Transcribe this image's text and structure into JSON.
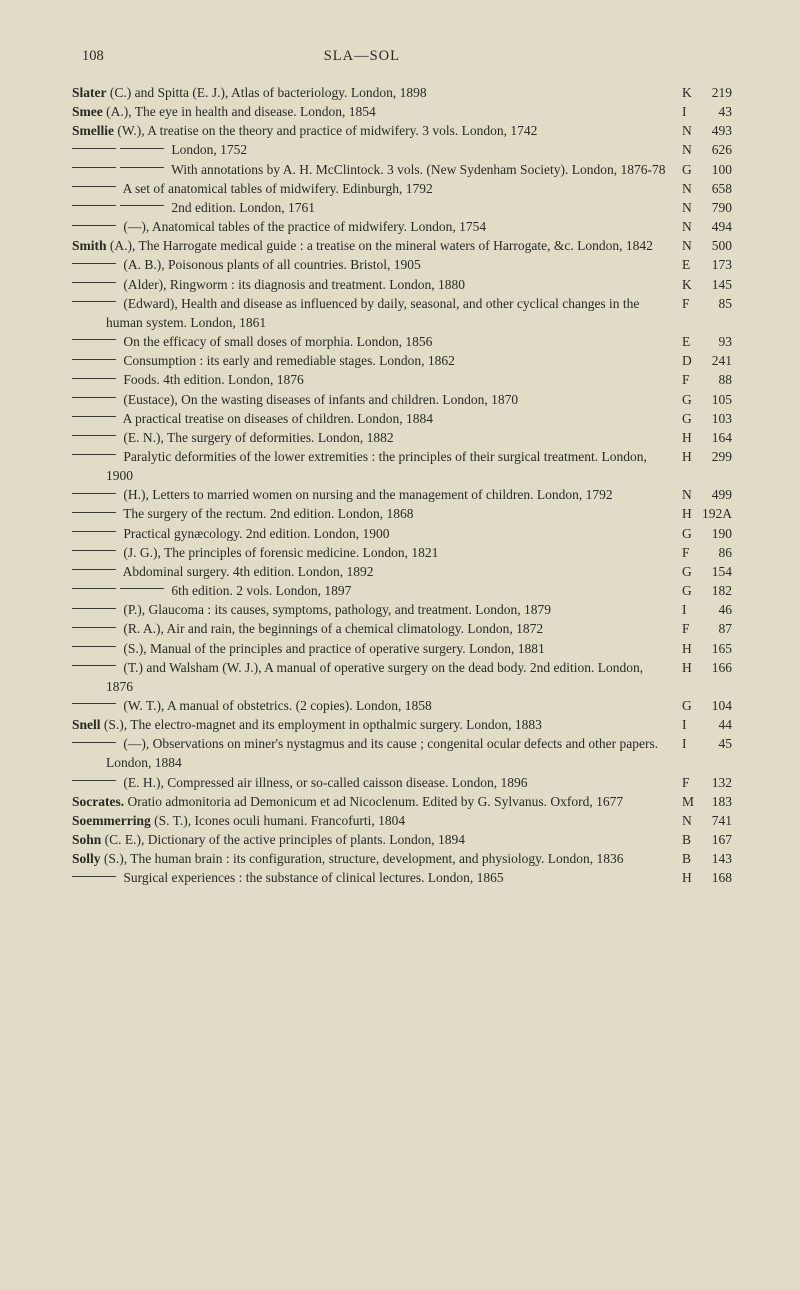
{
  "page_number": "108",
  "running_head": "SLA—SOL",
  "colors": {
    "background": "#e0dcc8",
    "text": "#2a2a22",
    "rule": "#3a3a30"
  },
  "typography": {
    "body_family": "Georgia, 'Times New Roman', serif",
    "body_size_pt": 10,
    "header_size_pt": 11
  },
  "entries": [
    {
      "indents": 0,
      "dashes": 0,
      "bold_lead": "Slater",
      "text": " (C.) and Spitta (E. J.), Atlas of bacteriology.  London, 1898",
      "letter": "K",
      "num": "219"
    },
    {
      "indents": 0,
      "dashes": 0,
      "bold_lead": "Smee",
      "text": " (A.), The eye in health and disease.  London, 1854",
      "letter": "I",
      "num": "43"
    },
    {
      "indents": 0,
      "dashes": 0,
      "bold_lead": "Smellie",
      "text": " (W.), A treatise on the theory and practice of midwifery. 3 vols.  London, 1742",
      "letter": "N",
      "num": "493"
    },
    {
      "indents": 1,
      "dashes": 2,
      "text": " London, 1752",
      "letter": "N",
      "num": "626"
    },
    {
      "indents": 1,
      "dashes": 2,
      "text": " With annotations by A. H. McClintock.  3 vols. (New Sydenham Society).  London, 1876-78",
      "letter": "G",
      "num": "100"
    },
    {
      "indents": 1,
      "dashes": 1,
      "text": " A set of anatomical tables of midwifery.  Edinburgh, 1792",
      "letter": "N",
      "num": "658"
    },
    {
      "indents": 1,
      "dashes": 2,
      "text": " 2nd edition.  London, 1761",
      "letter": "N",
      "num": "790"
    },
    {
      "indents": 1,
      "dashes": 1,
      "text": " (—), Anatomical tables of the practice of midwifery.  London, 1754",
      "letter": "N",
      "num": "494"
    },
    {
      "indents": 0,
      "dashes": 0,
      "bold_lead": "Smith",
      "text": " (A.), The Harrogate medical guide : a treatise on the mineral waters of Harrogate, &c.  London, 1842",
      "letter": "N",
      "num": "500"
    },
    {
      "indents": 1,
      "dashes": 1,
      "text": " (A. B.), Poisonous plants of all countries.  Bristol, 1905",
      "letter": "E",
      "num": "173"
    },
    {
      "indents": 1,
      "dashes": 1,
      "text": " (Alder), Ringworm : its diagnosis and treatment.  London, 1880",
      "letter": "K",
      "num": "145"
    },
    {
      "indents": 1,
      "dashes": 1,
      "text": " (Edward), Health and disease as influenced by daily, seasonal, and other cyclical changes in the human system.  London, 1861",
      "letter": "F",
      "num": "85"
    },
    {
      "indents": 1,
      "dashes": 1,
      "text": " On the efficacy of small doses of morphia.  London, 1856",
      "letter": "E",
      "num": "93"
    },
    {
      "indents": 1,
      "dashes": 1,
      "text": " Consumption : its early and remediable stages.  London, 1862",
      "letter": "D",
      "num": "241"
    },
    {
      "indents": 1,
      "dashes": 1,
      "text": " Foods.  4th edition.  London, 1876",
      "letter": "F",
      "num": "88"
    },
    {
      "indents": 1,
      "dashes": 1,
      "text": " (Eustace), On the wasting diseases of infants and children. London, 1870",
      "letter": "G",
      "num": "105"
    },
    {
      "indents": 1,
      "dashes": 1,
      "text": " A practical treatise on diseases of children.  London, 1884",
      "letter": "G",
      "num": "103"
    },
    {
      "indents": 1,
      "dashes": 1,
      "text": " (E. N.), The surgery of deformities.  London, 1882",
      "letter": "H",
      "num": "164"
    },
    {
      "indents": 1,
      "dashes": 1,
      "text": " Paralytic deformities of the lower extremities : the principles of their surgical treatment.  London, 1900",
      "letter": "H",
      "num": "299"
    },
    {
      "indents": 1,
      "dashes": 1,
      "text": " (H.), Letters to married women on nursing and the management of children.  London, 1792",
      "letter": "N",
      "num": "499"
    },
    {
      "indents": 1,
      "dashes": 1,
      "text": " The surgery of the rectum.  2nd edition.  London, 1868",
      "letter": "H",
      "num": "192A"
    },
    {
      "indents": 1,
      "dashes": 1,
      "text": " Practical gynæcology.  2nd edition.  London, 1900",
      "letter": "G",
      "num": "190"
    },
    {
      "indents": 1,
      "dashes": 1,
      "text": " (J. G.), The principles of forensic medicine.  London, 1821",
      "letter": "F",
      "num": "86"
    },
    {
      "indents": 1,
      "dashes": 1,
      "text": " Abdominal surgery.  4th edition.  London, 1892",
      "letter": "G",
      "num": "154"
    },
    {
      "indents": 1,
      "dashes": 2,
      "text": " 6th edition.  2 vols.  London, 1897",
      "letter": "G",
      "num": "182"
    },
    {
      "indents": 1,
      "dashes": 1,
      "text": " (P.), Glaucoma : its causes, symptoms, pathology, and treatment.  London, 1879",
      "letter": "I",
      "num": "46"
    },
    {
      "indents": 1,
      "dashes": 1,
      "text": " (R. A.), Air and rain, the beginnings of a chemical climatology. London, 1872",
      "letter": "F",
      "num": "87"
    },
    {
      "indents": 1,
      "dashes": 1,
      "text": " (S.), Manual of the principles and practice of operative surgery. London, 1881",
      "letter": "H",
      "num": "165"
    },
    {
      "indents": 1,
      "dashes": 1,
      "text": " (T.) and Walsham (W. J.), A manual of operative surgery on the dead body.  2nd edition.  London, 1876",
      "letter": "H",
      "num": "166"
    },
    {
      "indents": 1,
      "dashes": 1,
      "text": " (W. T.), A manual of obstetrics.  (2 copies).  London, 1858",
      "letter": "G",
      "num": "104"
    },
    {
      "indents": 0,
      "dashes": 0,
      "bold_lead": "Snell",
      "text": " (S.), The electro-magnet and its employment in opthalmic surgery. London, 1883",
      "letter": "I",
      "num": "44"
    },
    {
      "indents": 1,
      "dashes": 1,
      "text": " (—), Observations on miner's nystagmus and its cause ; congenital ocular defects and other papers.  London, 1884",
      "letter": "I",
      "num": "45"
    },
    {
      "indents": 1,
      "dashes": 1,
      "text": " (E. H.), Compressed air illness, or so-called caisson disease. London, 1896",
      "letter": "F",
      "num": "132"
    },
    {
      "indents": 0,
      "dashes": 0,
      "bold_lead": "Socrates.",
      "text": "  Oratio admonitoria ad Demonicum et ad Nicoclenum. Edited by G. Sylvanus.  Oxford, 1677",
      "letter": "M",
      "num": "183"
    },
    {
      "indents": 0,
      "dashes": 0,
      "bold_lead": "Soemmerring",
      "text": " (S. T.), Icones oculi humani.  Francofurti, 1804",
      "letter": "N",
      "num": "741"
    },
    {
      "indents": 0,
      "dashes": 0,
      "bold_lead": "Sohn",
      "text": " (C. E.), Dictionary of the active principles of plants.  London, 1894",
      "letter": "B",
      "num": "167"
    },
    {
      "indents": 0,
      "dashes": 0,
      "bold_lead": "Solly",
      "text": " (S.), The human brain : its configuration, structure, development, and physiology.  London, 1836",
      "letter": "B",
      "num": "143"
    },
    {
      "indents": 1,
      "dashes": 1,
      "text": " Surgical experiences : the substance of clinical lectures. London, 1865",
      "letter": "H",
      "num": "168"
    }
  ]
}
